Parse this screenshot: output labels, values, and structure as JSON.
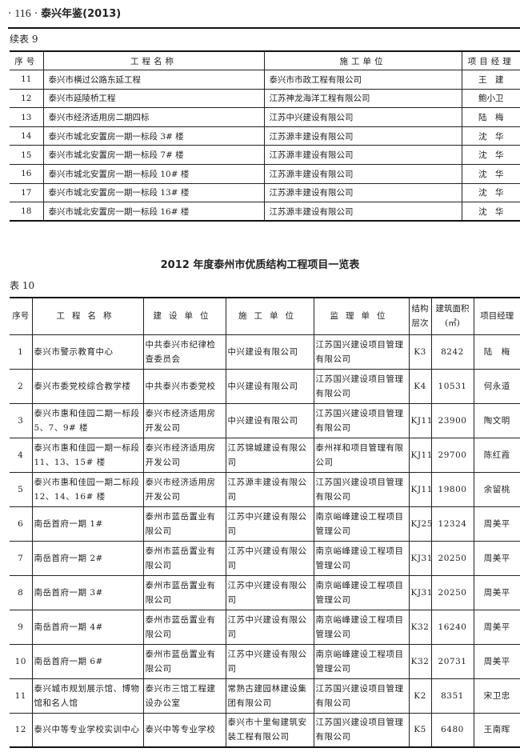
{
  "header": {
    "page": "116",
    "book": "泰兴年鉴(2013)"
  },
  "table9": {
    "caption": "续表 9",
    "headers": [
      "序号",
      "工程名称",
      "施工单位",
      "项目经理"
    ],
    "rows": [
      [
        "11",
        "泰兴市横过公路东延工程",
        "泰兴市市政工程有限公司",
        "王　建"
      ],
      [
        "12",
        "泰兴市延陵桥工程",
        "江苏神龙海洋工程有限公司",
        "鲍小卫"
      ],
      [
        "13",
        "泰兴市经济适用房二期四标",
        "江苏中兴建设有限公司",
        "陆　梅"
      ],
      [
        "14",
        "泰兴市城北安置房一期一标段 3# 楼",
        "江苏源丰建设有限公司",
        "沈　华"
      ],
      [
        "15",
        "泰兴市城北安置房一期一标段 7# 楼",
        "江苏源丰建设有限公司",
        "沈　华"
      ],
      [
        "16",
        "泰兴市城北安置房一期一标段 10# 楼",
        "江苏源丰建设有限公司",
        "沈　华"
      ],
      [
        "17",
        "泰兴市城北安置房一期一标段 13# 楼",
        "江苏源丰建设有限公司",
        "沈　华"
      ],
      [
        "18",
        "泰兴市城北安置房一期一标段 16# 楼",
        "江苏源丰建设有限公司",
        "沈　华"
      ]
    ]
  },
  "table10": {
    "title": "2012 年度泰州市优质结构工程项目一览表",
    "caption": "表 10",
    "headers": [
      "序号",
      "工程名称",
      "建设单位",
      "施工单位",
      "监理单位",
      "结构层次",
      "建筑面积(㎡)",
      "项目经理"
    ],
    "rows": [
      [
        "1",
        "泰兴市警示教育中心",
        "中共泰兴市纪律检查委员会",
        "中兴建设有限公司",
        "江苏国兴建设项目管理有限公司",
        "K3",
        "8242",
        "陆　梅"
      ],
      [
        "2",
        "泰兴市委党校综合教学楼",
        "中共泰兴市委党校",
        "中兴建设有限公司",
        "江苏国兴建设项目管理有限公司",
        "K4",
        "10531",
        "何永道"
      ],
      [
        "3",
        "泰兴市惠和佳园二期一标段 5、7、9# 楼",
        "泰兴市经济适用房开发公司",
        "中兴建设有限公司",
        "江苏国兴建设项目管理有限公司",
        "KJ11",
        "23900",
        "陶文明"
      ],
      [
        "4",
        "泰兴市惠和佳园一期一标段 11、13、15# 楼",
        "泰兴市经济适用房开发公司",
        "江苏锦城建设有限公司",
        "泰州祥和项目管理有限公司",
        "KJ11",
        "29700",
        "陈红霞"
      ],
      [
        "5",
        "泰兴市惠和佳园一期二标段 12、14、16# 楼",
        "泰兴市经济适用房开发公司",
        "江苏源丰建设有限公司",
        "江苏国兴建设项目管理有限公司",
        "KJ11",
        "19800",
        "余留桃"
      ],
      [
        "6",
        "南岳首府一期 1#",
        "泰州市蓝岳置业有限公司",
        "江苏中兴建设有限公司",
        "南京峪峰建设工程项目管理公司",
        "KJ25",
        "12324",
        "周美平"
      ],
      [
        "7",
        "南岳首府一期 2#",
        "泰州市蓝岳置业有限公司",
        "江苏中兴建设有限公司",
        "南京峪峰建设工程项目管理公司",
        "KJ31",
        "20250",
        "周美平"
      ],
      [
        "8",
        "南岳首府一期 3#",
        "泰州市蓝岳置业有限公司",
        "江苏中兴建设有限公司",
        "南京峪峰建设工程项目管理公司",
        "KJ31",
        "20250",
        "周美平"
      ],
      [
        "9",
        "南岳首府一期 4#",
        "泰州市蓝岳置业有限公司",
        "江苏中兴建设有限公司",
        "南京峪峰建设工程项目管理公司",
        "K32",
        "16240",
        "周美平"
      ],
      [
        "10",
        "南岳首府一期 6#",
        "泰州市蓝岳置业有限公司",
        "江苏中兴建设有限公司",
        "南京峪峰建设工程项目管理公司",
        "K32",
        "20731",
        "周美平"
      ],
      [
        "11",
        "泰兴城市规划展示馆、博物馆和名人馆",
        "泰兴市三馆工程建设办公室",
        "常熟古建园林建设集团有限公司",
        "江苏国兴建设项目管理有限公司",
        "K2",
        "8351",
        "宋卫忠"
      ],
      [
        "12",
        "泰兴中等专业学校实训中心",
        "泰兴中等专业学校",
        "泰兴市十里甸建筑安装工程有限公司",
        "江苏国兴建设项目管理有限公司",
        "K5",
        "6480",
        "王南晖"
      ]
    ]
  }
}
